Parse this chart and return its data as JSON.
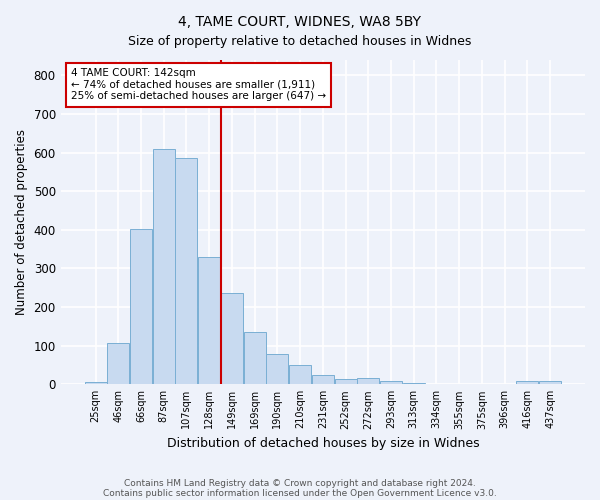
{
  "title1": "4, TAME COURT, WIDNES, WA8 5BY",
  "title2": "Size of property relative to detached houses in Widnes",
  "xlabel": "Distribution of detached houses by size in Widnes",
  "ylabel": "Number of detached properties",
  "bar_labels": [
    "25sqm",
    "46sqm",
    "66sqm",
    "87sqm",
    "107sqm",
    "128sqm",
    "149sqm",
    "169sqm",
    "190sqm",
    "210sqm",
    "231sqm",
    "252sqm",
    "272sqm",
    "293sqm",
    "313sqm",
    "334sqm",
    "355sqm",
    "375sqm",
    "396sqm",
    "416sqm",
    "437sqm"
  ],
  "bar_values": [
    7,
    106,
    401,
    609,
    585,
    330,
    237,
    135,
    78,
    50,
    24,
    15,
    17,
    8,
    4,
    2,
    0,
    0,
    0,
    8,
    9
  ],
  "bar_color": "#c8daf0",
  "bar_edge_color": "#7aafd4",
  "vline_x": 5.5,
  "vline_color": "#cc0000",
  "annotation_text": "4 TAME COURT: 142sqm\n← 74% of detached houses are smaller (1,911)\n25% of semi-detached houses are larger (647) →",
  "annotation_box_color": "#ffffff",
  "annotation_box_edge": "#cc0000",
  "footnote1": "Contains HM Land Registry data © Crown copyright and database right 2024.",
  "footnote2": "Contains public sector information licensed under the Open Government Licence v3.0.",
  "ylim": [
    0,
    840
  ],
  "yticks": [
    0,
    100,
    200,
    300,
    400,
    500,
    600,
    700,
    800
  ],
  "background_color": "#eef2fa",
  "grid_color": "#ffffff",
  "title_fontsize": 10,
  "subtitle_fontsize": 9
}
